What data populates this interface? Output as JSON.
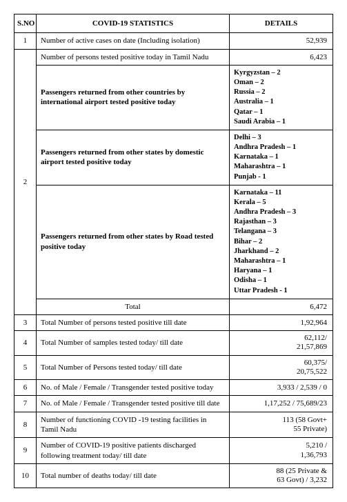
{
  "headers": {
    "sno": "S.NO",
    "stat": "COVID-19 STATISTICS",
    "details": "DETAILS"
  },
  "row1": {
    "sno": "1",
    "label": "Number of active cases on date (Including isolation)",
    "value": "52,939"
  },
  "row2": {
    "sno": "2",
    "sub1_label": "Number of persons tested positive today in Tamil Nadu",
    "sub1_value": "6,423",
    "sub2_label": "Passengers returned from other countries by international airport tested positive today",
    "sub2_list": "Kyrgyzstan – 2\nOman – 2\nRussia – 2\nAustralia – 1\nQatar – 1\nSaudi Arabia – 1",
    "sub3_label": "Passengers returned from other states by domestic airport tested positive today",
    "sub3_list": "Delhi – 3\nAndhra Pradesh – 1\nKarnataka – 1\nMaharashtra – 1\nPunjab - 1",
    "sub4_label": "Passengers returned from other states by Road tested positive today",
    "sub4_list": "Karnataka – 11\nKerala – 5\nAndhra Pradesh – 3\nRajasthan – 3\nTelangana – 3\nBihar – 2\nJharkhand – 2\nMaharashtra – 1\nHaryana – 1\nOdisha – 1\nUttar Pradesh - 1",
    "total_label": "Total",
    "total_value": "6,472"
  },
  "row3": {
    "sno": "3",
    "label": "Total Number of persons tested positive till date",
    "value": "1,92,964"
  },
  "row4": {
    "sno": "4",
    "label": "Total Number of samples tested today/ till date",
    "value": "62,112/\n21,57,869"
  },
  "row5": {
    "sno": "5",
    "label": "Total Number of Persons tested today/ till date",
    "value": "60,375/\n20,75,522"
  },
  "row6": {
    "sno": "6",
    "label": "No. of Male / Female / Transgender tested positive today",
    "value": "3,933 / 2,539 / 0"
  },
  "row7": {
    "sno": "7",
    "label": "No. of Male / Female / Transgender tested positive till date",
    "value": "1,17,252 / 75,689/23"
  },
  "row8": {
    "sno": "8",
    "label": "Number of functioning COVID -19 testing facilities in Tamil Nadu",
    "value": "113 (58 Govt+\n55 Private)"
  },
  "row9": {
    "sno": "9",
    "label": "Number of COVID-19 positive patients discharged following treatment today/ till date",
    "value": "5,210 /\n1,36,793"
  },
  "row10": {
    "sno": "10",
    "label": "Total number of deaths today/ till date",
    "value": "88 (25 Private &\n63 Govt) / 3,232"
  }
}
